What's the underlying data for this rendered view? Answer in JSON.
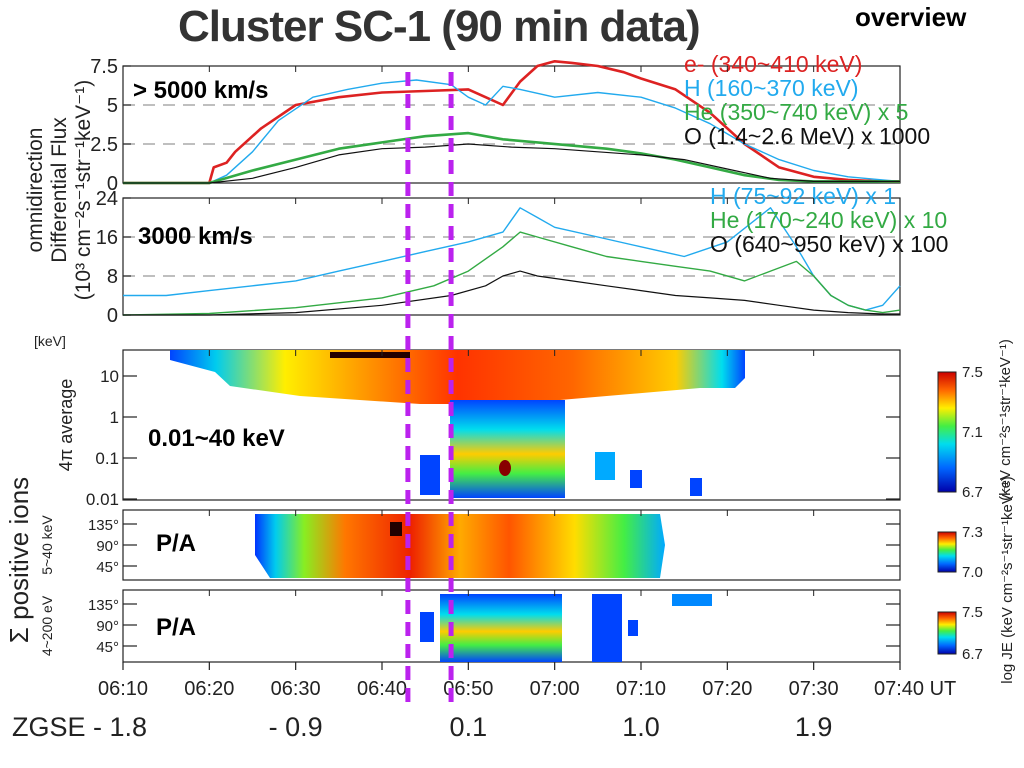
{
  "header": {
    "title": "Cluster  SC-1 (90 min data)",
    "tag": "overview"
  },
  "colors": {
    "electron": "#dd2222",
    "hydrogen": "#22aaee",
    "helium": "#33aa44",
    "oxygen": "#111111",
    "marker": "#bb22ee"
  },
  "chart_data": [
    {
      "type": "line",
      "panel": "high-energy-flux",
      "annotation": "> 5000 km/s",
      "yticks": [
        "7.5",
        "5",
        "2.5",
        "0"
      ],
      "ylim": [
        0,
        7.5
      ],
      "xlim": [
        0,
        90
      ],
      "series": [
        {
          "name": "e- (340~410 keV)",
          "color": "#dd2222",
          "x": [
            0,
            10,
            10.5,
            12,
            13,
            16,
            20,
            25,
            30,
            35,
            40,
            42,
            44,
            46,
            48,
            50,
            52,
            55,
            58,
            60,
            64,
            68,
            72,
            76,
            80,
            84,
            88,
            90
          ],
          "y": [
            0,
            0,
            1.0,
            1.3,
            2.0,
            3.5,
            5.0,
            5.5,
            5.8,
            5.9,
            6.0,
            5.5,
            5.0,
            6.5,
            7.5,
            7.8,
            7.7,
            7.5,
            7.1,
            6.7,
            6.0,
            4.5,
            2.5,
            1.0,
            0.4,
            0.2,
            0.1,
            0.1
          ]
        },
        {
          "name": "H (160~370 keV)",
          "color": "#22aaee",
          "x": [
            0,
            10,
            12,
            15,
            18,
            22,
            26,
            30,
            34,
            38,
            40,
            42,
            44,
            46,
            50,
            55,
            60,
            64,
            68,
            72,
            76,
            80,
            84,
            88,
            90
          ],
          "y": [
            0,
            0,
            0.5,
            2.0,
            4.0,
            5.5,
            6.0,
            6.4,
            6.6,
            6.3,
            5.5,
            5.0,
            6.2,
            6.0,
            5.5,
            5.8,
            5.5,
            4.8,
            3.8,
            2.5,
            1.5,
            0.8,
            0.4,
            0.2,
            0.1
          ]
        },
        {
          "name": "He (350~740 keV) x 5",
          "color": "#33aa44",
          "x": [
            0,
            10,
            15,
            20,
            25,
            30,
            35,
            40,
            44,
            48,
            52,
            56,
            60,
            64,
            68,
            72,
            76,
            80,
            84,
            88,
            90
          ],
          "y": [
            0,
            0,
            0.8,
            1.5,
            2.2,
            2.6,
            3.0,
            3.2,
            2.8,
            2.6,
            2.4,
            2.2,
            1.9,
            1.5,
            1.0,
            0.5,
            0.2,
            0.1,
            0.1,
            0.1,
            0.1
          ]
        },
        {
          "name": "O (1.4~2.6 MeV) x 1000",
          "color": "#111111",
          "x": [
            0,
            10,
            15,
            20,
            25,
            30,
            35,
            40,
            45,
            50,
            55,
            60,
            65,
            70,
            75,
            80,
            84,
            88,
            90
          ],
          "y": [
            0,
            0,
            0.3,
            1.0,
            1.8,
            2.2,
            2.3,
            2.5,
            2.3,
            2.2,
            2.0,
            1.8,
            1.5,
            0.9,
            0.3,
            0.1,
            0.1,
            0.1,
            0.1
          ]
        }
      ]
    },
    {
      "type": "line",
      "panel": "mid-energy-flux",
      "annotation": "3000 km/s",
      "yticks": [
        "24",
        "16",
        "8",
        "0"
      ],
      "ylim": [
        0,
        24
      ],
      "xlim": [
        0,
        90
      ],
      "series": [
        {
          "name": "H (75~92 keV) x 1",
          "color": "#22aaee",
          "x": [
            0,
            5,
            10,
            15,
            20,
            25,
            30,
            35,
            40,
            44,
            46,
            48,
            50,
            55,
            60,
            65,
            70,
            75,
            78,
            80,
            82,
            84,
            86,
            88,
            90
          ],
          "y": [
            4,
            4,
            5,
            6,
            7,
            9,
            11,
            13,
            15,
            17,
            22,
            20,
            18,
            16,
            14,
            12,
            15,
            22,
            14,
            8,
            4,
            2,
            1,
            2,
            6
          ]
        },
        {
          "name": "He (170~240 keV) x 10",
          "color": "#33aa44",
          "x": [
            0,
            10,
            20,
            30,
            36,
            40,
            44,
            46,
            48,
            52,
            56,
            60,
            64,
            68,
            72,
            75,
            78,
            80,
            82,
            84,
            86,
            88,
            90
          ],
          "y": [
            0,
            0.3,
            1.5,
            3.5,
            6,
            9,
            14,
            17,
            16,
            14,
            12,
            11,
            10,
            9,
            7,
            9,
            11,
            8,
            4,
            2,
            1,
            0.5,
            1
          ]
        },
        {
          "name": "O (640~950 keV) x 100",
          "color": "#111111",
          "x": [
            0,
            10,
            20,
            30,
            38,
            42,
            44,
            46,
            48,
            52,
            56,
            60,
            64,
            68,
            72,
            76,
            80,
            84,
            88,
            90
          ],
          "y": [
            0,
            0,
            0.5,
            2,
            4,
            6,
            8,
            9,
            8,
            7,
            6,
            5,
            4,
            3.5,
            3,
            2,
            1,
            0.5,
            0.2,
            0.2
          ]
        }
      ]
    },
    {
      "type": "heatmap",
      "panel": "energy-spectrogram",
      "annotation": "0.01~40 keV",
      "yunit": "[keV]",
      "yticks": [
        "10",
        "1",
        "0.1",
        "0.01"
      ],
      "ylabel": "4π average",
      "colorbar": {
        "ticks": [
          "7.5",
          "7.1",
          "6.7"
        ],
        "label": "(keV cm⁻²s⁻¹str⁻¹keV⁻¹)"
      }
    },
    {
      "type": "heatmap",
      "panel": "pitch-angle-5-40keV",
      "annotation": "P/A",
      "ylabel": "5~40 keV",
      "yticks": [
        "135°",
        "90°",
        "45°"
      ],
      "colorbar": {
        "ticks": [
          "7.3",
          "7.0"
        ],
        "label": "log JE (keV cm⁻²s⁻¹str⁻¹keV⁻¹)"
      }
    },
    {
      "type": "heatmap",
      "panel": "pitch-angle-4-200eV",
      "annotation": "P/A",
      "ylabel": "4~200 eV",
      "yticks": [
        "135°",
        "90°",
        "45°"
      ],
      "colorbar": {
        "ticks": [
          "7.5",
          "6.7"
        ]
      }
    }
  ],
  "axes": {
    "flux_ylabel_1": "omnidirection",
    "flux_ylabel_2": "Differential  Flux",
    "flux_ylabel_3": "(10³ cm⁻²s⁻¹str⁻¹keV⁻¹)",
    "ions_ylabel": "Σ positive ions",
    "time_ticks": [
      "06:10",
      "06:20",
      "06:30",
      "06:40",
      "06:50",
      "07:00",
      "07:10",
      "07:20",
      "07:30",
      "07:40 UT"
    ],
    "zgse_label": "ZGSE - 1.8",
    "zgse_ticks": [
      "- 0.9",
      "0.1",
      "1.0",
      "1.9"
    ],
    "markers_minutes": [
      33,
      38
    ]
  }
}
